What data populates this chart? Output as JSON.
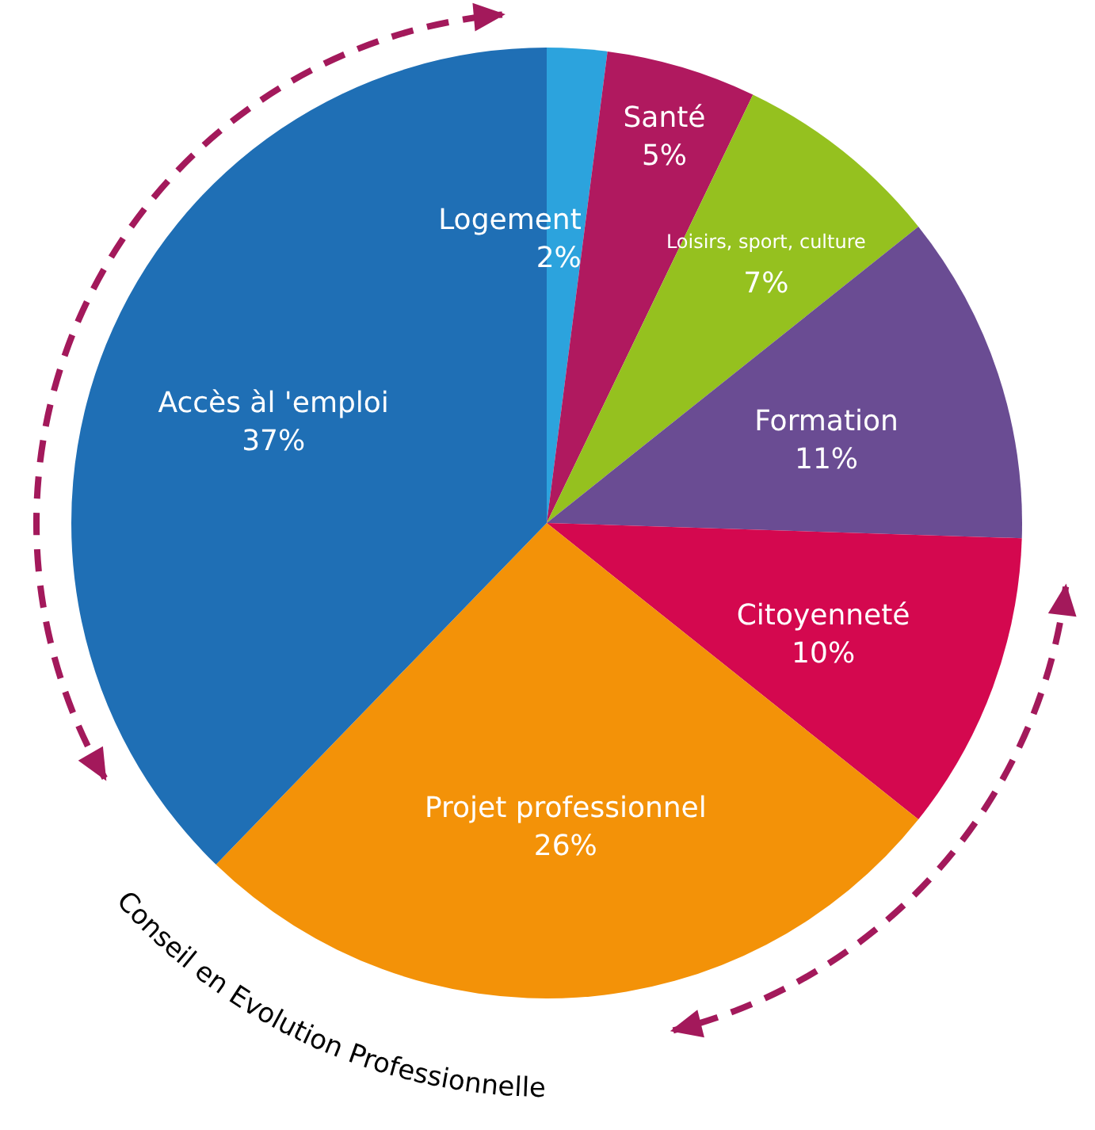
{
  "chart_data": {
    "type": "pie",
    "categories": [
      "Logement",
      "Santé",
      "Loisirs, sport, culture",
      "Formation",
      "Citoyenneté",
      "Projet professionnel",
      "Accès àl 'emploi"
    ],
    "values": [
      2,
      5,
      7,
      11,
      10,
      26,
      37
    ],
    "colors": [
      "#2ca3dd",
      "#b0195f",
      "#95c11f",
      "#6a4c93",
      "#d4084f",
      "#f39208",
      "#1f6fb5"
    ],
    "value_labels": [
      "2%",
      "5%",
      "7%",
      "11%",
      "10%",
      "26%",
      "37%"
    ],
    "annotations": [
      "Conseil en Evolution Professionnelle"
    ]
  }
}
